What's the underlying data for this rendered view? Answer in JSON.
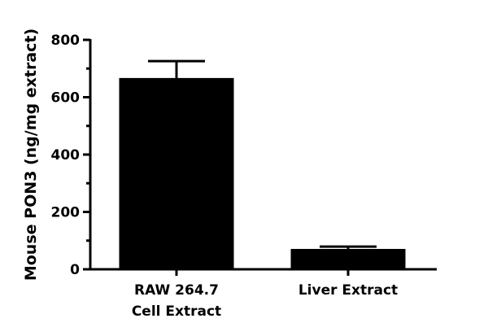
{
  "chart_data": {
    "type": "bar",
    "title": "",
    "xlabel": "",
    "ylabel": "Mouse PON3 (ng/mg extract)",
    "ylim": [
      0,
      800
    ],
    "yticks": [
      0,
      200,
      400,
      600,
      800
    ],
    "yticks_labels": [
      "0",
      "200",
      "400",
      "600",
      "800"
    ],
    "categories": [
      "RAW 264.7 Cell Extract",
      "Liver Extract"
    ],
    "category_lines": [
      [
        "RAW 264.7",
        "Cell Extract"
      ],
      [
        "Liver Extract"
      ]
    ],
    "values": [
      667,
      71
    ],
    "error_upper": [
      726,
      79
    ],
    "bar_color": "#000000",
    "grid": false,
    "legend": null
  }
}
